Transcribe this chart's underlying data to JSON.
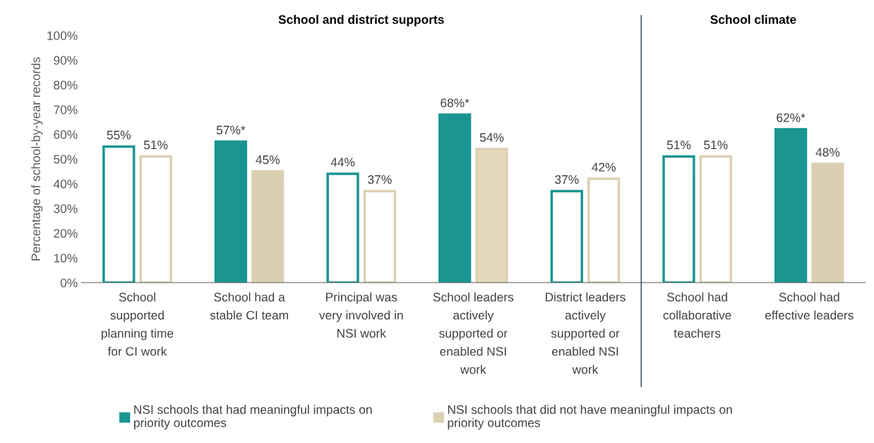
{
  "chart_data": {
    "type": "bar",
    "categories": [
      "School\nsupported\nplanning time\nfor CI work",
      "School had a\nstable CI team",
      "Principal was\nvery involved in\nNSI work",
      "School leaders\nactively\nsupported or\nenabled NSI\nwork",
      "District leaders\nactively\nsupported or\nenabled NSI\nwork",
      "School had\ncollaborative\nteachers",
      "School had\neffective leaders"
    ],
    "series": [
      {
        "name": "NSI schools that had meaningful impacts on\npriority outcomes",
        "color": "#1a9592",
        "colors": [
          "#ffffff",
          "#1a9592",
          "#ffffff",
          "#1a9592",
          "#ffffff",
          "#ffffff",
          "#1a9592"
        ],
        "values": [
          55,
          57,
          44,
          68,
          37,
          51,
          62
        ],
        "value_labels": [
          "55%",
          "57%*",
          "44%",
          "68%*",
          "37%",
          "51%",
          "62%*"
        ]
      },
      {
        "name": "NSI schools that did not have meaningful impacts on\npriority outcomes",
        "color": "#dcd0b3",
        "colors": [
          "#ffffff",
          "#d9cdb2",
          "#ffffff",
          "#e3d8b9",
          "#ffffff",
          "#ffffff",
          "#d9cdb2"
        ],
        "values": [
          51,
          45,
          37,
          54,
          42,
          51,
          48
        ],
        "value_labels": [
          "51%",
          "45%",
          "37%",
          "54%",
          "42%",
          "51%",
          "48%"
        ]
      }
    ],
    "ylabel": "Percentage of school-by-year records",
    "ylim": [
      0,
      100
    ],
    "yticks": [
      {
        "value": 0,
        "label": "0%"
      },
      {
        "value": 10,
        "label": "10%"
      },
      {
        "value": 20,
        "label": "20%"
      },
      {
        "value": 30,
        "label": "30%"
      },
      {
        "value": 40,
        "label": "40%"
      },
      {
        "value": 50,
        "label": "50%"
      },
      {
        "value": 60,
        "label": "60%"
      },
      {
        "value": 70,
        "label": "70%"
      },
      {
        "value": 80,
        "label": "80%"
      },
      {
        "value": 90,
        "label": "90%"
      },
      {
        "value": 100,
        "label": "100%"
      }
    ],
    "annotations": [
      "School and district supports",
      "School climate"
    ],
    "grid": false,
    "legend": "bottom"
  }
}
